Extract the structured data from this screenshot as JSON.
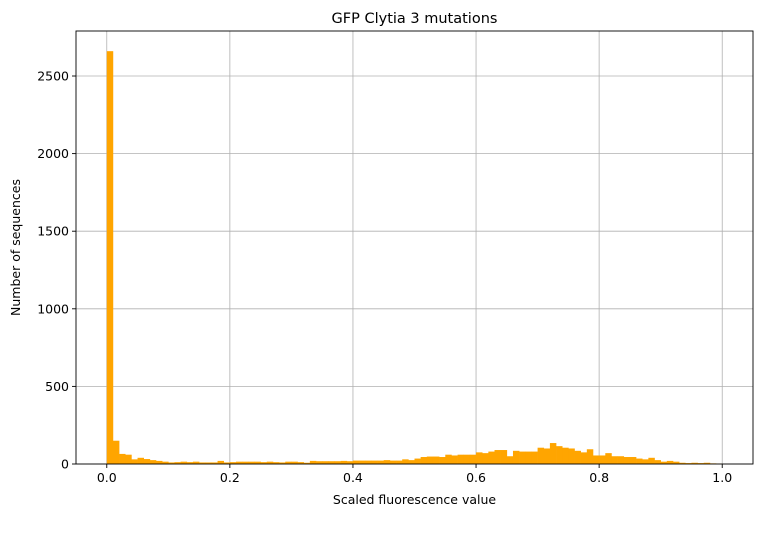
{
  "chart_data": {
    "type": "bar",
    "title": "GFP Clytia 3 mutations",
    "xlabel": "Scaled fluorescence value",
    "ylabel": "Number of sequences",
    "xlim": [
      -0.05,
      1.05
    ],
    "ylim": [
      0,
      2790
    ],
    "xticks": [
      0.0,
      0.2,
      0.4,
      0.6,
      0.8,
      1.0
    ],
    "xtick_labels": [
      "0.0",
      "0.2",
      "0.4",
      "0.6",
      "0.8",
      "1.0"
    ],
    "yticks": [
      0,
      500,
      1000,
      1500,
      2000,
      2500
    ],
    "ytick_labels": [
      "0",
      "500",
      "1000",
      "1500",
      "2000",
      "2500"
    ],
    "grid": true,
    "bar_color": "#FFA500",
    "bin_start": 0.0,
    "bin_width": 0.01,
    "values": [
      2660,
      150,
      65,
      60,
      30,
      40,
      32,
      25,
      20,
      15,
      10,
      12,
      15,
      12,
      15,
      10,
      10,
      10,
      20,
      10,
      12,
      15,
      15,
      15,
      15,
      12,
      15,
      12,
      10,
      15,
      15,
      12,
      8,
      20,
      18,
      18,
      18,
      18,
      20,
      18,
      22,
      22,
      22,
      22,
      22,
      25,
      22,
      22,
      30,
      25,
      35,
      45,
      48,
      48,
      45,
      60,
      55,
      60,
      60,
      60,
      75,
      70,
      80,
      90,
      90,
      50,
      85,
      80,
      80,
      80,
      105,
      100,
      135,
      115,
      105,
      100,
      85,
      75,
      95,
      55,
      55,
      70,
      50,
      50,
      45,
      45,
      35,
      30,
      40,
      25,
      15,
      20,
      15,
      8,
      6,
      8,
      6,
      8,
      4,
      2
    ]
  }
}
